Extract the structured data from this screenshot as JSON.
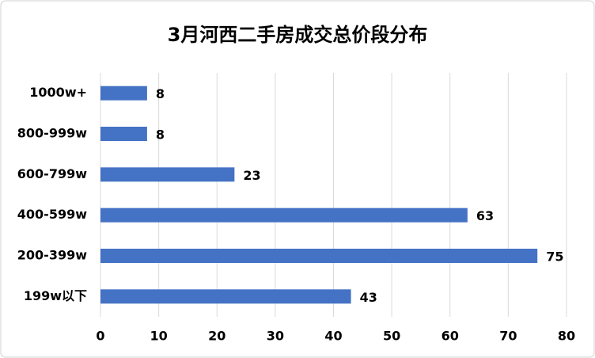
{
  "chart_data": {
    "type": "bar",
    "title": "3月河西二手房成交总价段分布",
    "categories": [
      "1000w+",
      "800-999w",
      "600-799w",
      "400-599w",
      "200-399w",
      "199w以下"
    ],
    "values": [
      8,
      8,
      23,
      63,
      75,
      43
    ],
    "color": "#4472c4",
    "xlim": [
      0,
      80
    ],
    "xticks": [
      0,
      10,
      20,
      30,
      40,
      50,
      60,
      70,
      80
    ],
    "grid": true
  }
}
